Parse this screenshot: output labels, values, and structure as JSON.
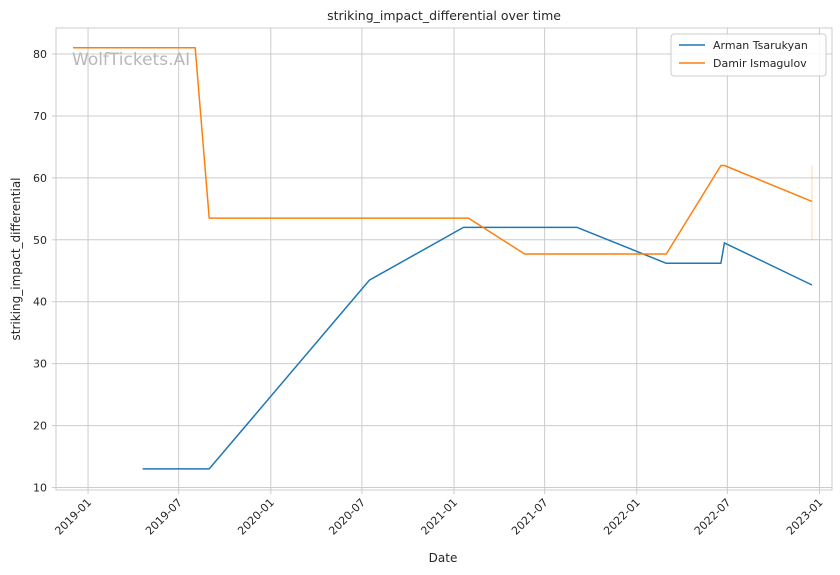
{
  "chart_data": {
    "type": "line",
    "title": "striking_impact_differential over time",
    "xlabel": "Date",
    "ylabel": "striking_impact_differential",
    "watermark": "WolfTickets.AI",
    "ylim": [
      9.6,
      84.2
    ],
    "xlim": [
      "2018-10-29",
      "2023-01-26"
    ],
    "yticks": [
      10,
      20,
      30,
      40,
      50,
      60,
      70,
      80
    ],
    "xticks": [
      "2019-01",
      "2019-07",
      "2020-01",
      "2020-07",
      "2021-01",
      "2021-07",
      "2022-01",
      "2022-07",
      "2023-01"
    ],
    "grid": true,
    "legend_position": "top-right",
    "series": [
      {
        "name": "Arman Tsarukyan",
        "color": "#1f77b4",
        "points": [
          {
            "x": "2019-04-20",
            "y": 13.0
          },
          {
            "x": "2019-08-31",
            "y": 13.0
          },
          {
            "x": "2020-07-16",
            "y": 43.5
          },
          {
            "x": "2021-01-20",
            "y": 52.0
          },
          {
            "x": "2021-09-04",
            "y": 52.0
          },
          {
            "x": "2022-03-01",
            "y": 46.2
          },
          {
            "x": "2022-06-18",
            "y": 46.2
          },
          {
            "x": "2022-06-25",
            "y": 49.5
          },
          {
            "x": "2022-12-17",
            "y": 42.7
          }
        ]
      },
      {
        "name": "Damir Ismagulov",
        "color": "#ff7f0e",
        "points": [
          {
            "x": "2018-12-02",
            "y": 81.0
          },
          {
            "x": "2019-08-03",
            "y": 81.0
          },
          {
            "x": "2019-08-31",
            "y": 53.5
          },
          {
            "x": "2021-01-30",
            "y": 53.5
          },
          {
            "x": "2021-05-22",
            "y": 47.7
          },
          {
            "x": "2022-03-01",
            "y": 47.7
          },
          {
            "x": "2022-06-18",
            "y": 62.0
          },
          {
            "x": "2022-06-25",
            "y": 62.0
          },
          {
            "x": "2022-12-17",
            "y": 56.2
          }
        ],
        "range_band": {
          "x": "2022-12-17",
          "ymin": 50.0,
          "ymax": 62.0
        }
      }
    ]
  }
}
